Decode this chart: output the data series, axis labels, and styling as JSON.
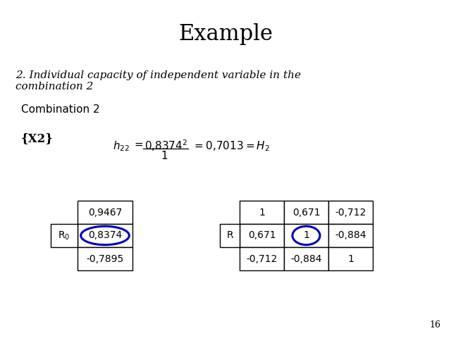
{
  "title": "Example",
  "subtitle": "2. Individual capacity of independent variable in the\ncombination 2",
  "combination_label": "Combination 2",
  "x2_label": "{X2}",
  "left_table": {
    "row_label": "R₀",
    "values": [
      "0,9467",
      "0,8374",
      "-0,7895"
    ]
  },
  "right_table": {
    "row_label": "R",
    "rows": [
      [
        "1",
        "0,671",
        "-0,712"
      ],
      [
        "0,671",
        "1",
        "-0,884"
      ],
      [
        "-0,712",
        "-0,884",
        "1"
      ]
    ]
  },
  "highlight_color": "#0000bb",
  "background_color": "#ffffff",
  "page_number": "16",
  "title_fontsize": 22,
  "subtitle_fontsize": 11,
  "combo_fontsize": 11,
  "formula_fontsize": 11,
  "table_fontsize": 10
}
